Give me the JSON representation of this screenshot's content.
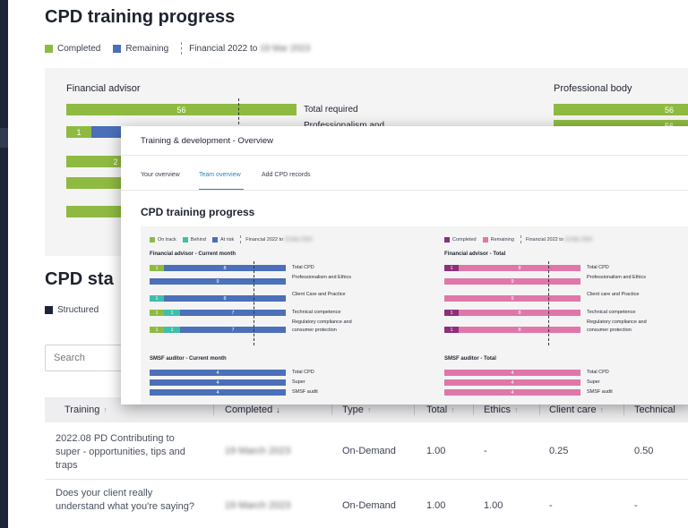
{
  "page": {
    "title": "CPD training progress",
    "legend": {
      "completed": "Completed",
      "remaining": "Remaining",
      "period": "Financial 2022 to",
      "period_end": "19 Mar 2023"
    },
    "colors": {
      "completed": "#8fba41",
      "remaining": "#4b6fb9",
      "sidebar": "#1c2437"
    },
    "financial_advisor": {
      "title": "Financial advisor",
      "rows": [
        {
          "completed": "56",
          "remaining": "",
          "label": "Total required"
        },
        {
          "completed": "1",
          "remaining": "",
          "label": "Professionalism and"
        },
        {
          "completed": "2",
          "remaining": "",
          "label": ""
        }
      ]
    },
    "professional_body": {
      "title": "Professional body",
      "rows": [
        {
          "value": "56"
        },
        {
          "value": "56"
        }
      ]
    },
    "status_section": {
      "title": "CPD sta",
      "legend_structured": "Structured",
      "search_placeholder": "Search"
    },
    "table": {
      "columns": [
        "Training",
        "Completed",
        "Type",
        "Total",
        "Ethics",
        "Client care",
        "Technical"
      ],
      "rows": [
        {
          "training": "2022.08 PD Contributing to super - opportunities, tips and traps",
          "completed": "19 March 2023",
          "type": "On-Demand",
          "total": "1.00",
          "ethics": "-",
          "client_care": "0.25",
          "technical": "0.50"
        },
        {
          "training": "Does your client really understand what you're saying?",
          "completed": "19 March 2023",
          "type": "On-Demand",
          "total": "1.00",
          "ethics": "1.00",
          "client_care": "-",
          "technical": "-"
        }
      ]
    }
  },
  "overlay": {
    "window_title": "Training & development - Overview",
    "tabs": [
      "Your overview",
      "Team overview",
      "Add CPD records"
    ],
    "active_tab": "Team overview",
    "heading": "CPD training progress",
    "left_legend": {
      "on_track": "On track",
      "behind": "Behind",
      "at_risk": "At risk",
      "period": "Financial 2022 to",
      "period_end": "19 Mar 2023"
    },
    "right_legend": {
      "completed": "Completed",
      "remaining": "Remaining",
      "period": "Financial 2022 to",
      "period_end": "19 Mar 2023"
    },
    "colors": {
      "on_track": "#8fba41",
      "behind": "#3ebfaa",
      "at_risk": "#4b6fb9",
      "completed": "#8e2f7a",
      "remaining": "#df77a9"
    },
    "fa_current": {
      "title": "Financial advisor - Current month",
      "rows": [
        {
          "a": "1",
          "b": "",
          "c": "8",
          "label": "Total CPD"
        },
        {
          "a": "",
          "b": "",
          "c": "9",
          "label": "Professionalism and Ethics"
        },
        {
          "a": "",
          "b": "1",
          "c": "8",
          "label": "Client Care and Practice"
        },
        {
          "a": "1",
          "b": "1",
          "c": "7",
          "label": "Technical competence"
        },
        {
          "a": "1",
          "b": "1",
          "c": "7",
          "label": "Regulatory compliance and consumer protection"
        }
      ]
    },
    "fa_total": {
      "title": "Financial advisor - Total",
      "rows": [
        {
          "a": "1",
          "c": "8",
          "label": "Total CPD"
        },
        {
          "a": "",
          "c": "9",
          "label": "Professionalism and Ethics"
        },
        {
          "a": "",
          "c": "9",
          "label": "Client care and Practice"
        },
        {
          "a": "1",
          "c": "8",
          "label": "Technical competence"
        },
        {
          "a": "1",
          "c": "8",
          "label": "Regulatory compliance and consumer protection"
        }
      ]
    },
    "smsf_current": {
      "title": "SMSF auditor - Current month",
      "rows": [
        {
          "c": "4",
          "label": "Total CPD"
        },
        {
          "c": "4",
          "label": "Super"
        },
        {
          "c": "4",
          "label": "SMSF audit"
        }
      ]
    },
    "smsf_total": {
      "title": "SMSF auditor - Total",
      "rows": [
        {
          "c": "4",
          "label": "Total CPD"
        },
        {
          "c": "4",
          "label": "Super"
        },
        {
          "c": "4",
          "label": "SMSF audit"
        }
      ]
    }
  }
}
